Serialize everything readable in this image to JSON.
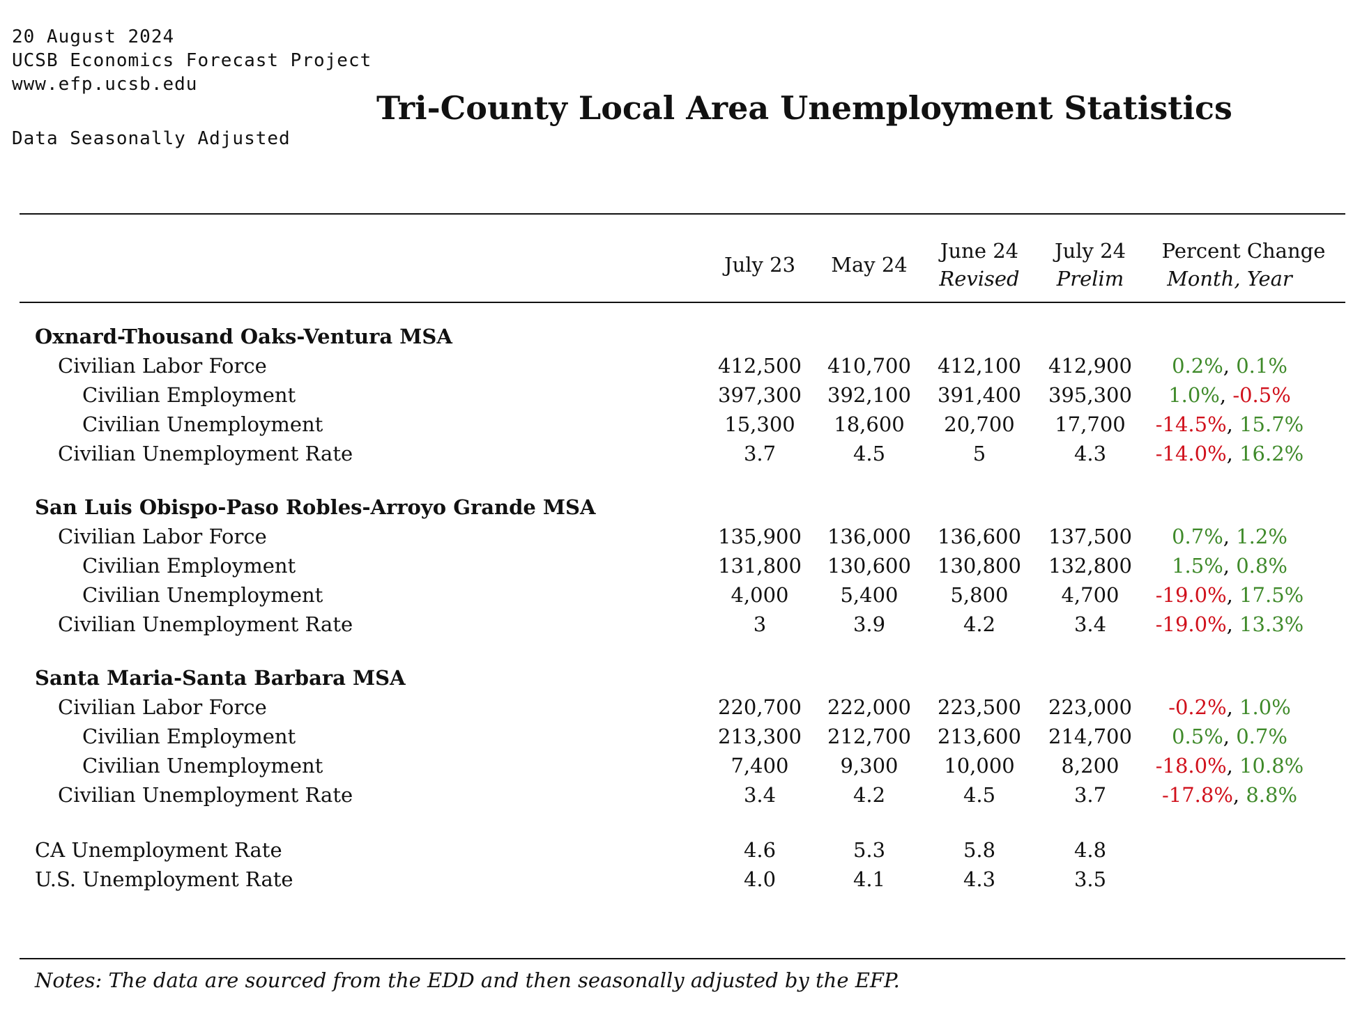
{
  "meta": {
    "date": "20 August 2024",
    "org": "UCSB Economics Forecast Project",
    "url": "www.efp.ucsb.edu",
    "adjustment": "Data Seasonally Adjusted"
  },
  "title": "Tri-County Local Area Unemployment Statistics",
  "columns": [
    {
      "label": "July 23",
      "sub": ""
    },
    {
      "label": "May 24",
      "sub": ""
    },
    {
      "label": "June 24",
      "sub": "Revised"
    },
    {
      "label": "July 24",
      "sub": "Prelim"
    }
  ],
  "pct_header": {
    "label": "Percent Change",
    "sub": "Month, Year"
  },
  "colors": {
    "positive": "#3f8a2a",
    "negative": "#d0101b"
  },
  "sections": [
    {
      "name": "Oxnard-Thousand Oaks-Ventura MSA",
      "rows": [
        {
          "label": "Civilian Labor Force",
          "values": [
            "412,500",
            "410,700",
            "412,100",
            "412,900"
          ],
          "month": "0.2%",
          "year": "0.1%"
        },
        {
          "label": "Civilian Employment",
          "values": [
            "397,300",
            "392,100",
            "391,400",
            "395,300"
          ],
          "month": "1.0%",
          "year": "-0.5%"
        },
        {
          "label": "Civilian Unemployment",
          "values": [
            "15,300",
            "18,600",
            "20,700",
            "17,700"
          ],
          "month": "-14.5%",
          "year": "15.7%"
        },
        {
          "label": "Civilian Unemployment Rate",
          "values": [
            "3.7",
            "4.5",
            "5",
            "4.3"
          ],
          "month": "-14.0%",
          "year": "16.2%"
        }
      ]
    },
    {
      "name": "San Luis Obispo-Paso Robles-Arroyo Grande MSA",
      "rows": [
        {
          "label": "Civilian Labor Force",
          "values": [
            "135,900",
            "136,000",
            "136,600",
            "137,500"
          ],
          "month": "0.7%",
          "year": "1.2%"
        },
        {
          "label": "Civilian Employment",
          "values": [
            "131,800",
            "130,600",
            "130,800",
            "132,800"
          ],
          "month": "1.5%",
          "year": "0.8%"
        },
        {
          "label": "Civilian Unemployment",
          "values": [
            "4,000",
            "5,400",
            "5,800",
            "4,700"
          ],
          "month": "-19.0%",
          "year": "17.5%"
        },
        {
          "label": "Civilian Unemployment Rate",
          "values": [
            "3",
            "3.9",
            "4.2",
            "3.4"
          ],
          "month": "-19.0%",
          "year": "13.3%"
        }
      ]
    },
    {
      "name": "Santa Maria-Santa Barbara MSA",
      "rows": [
        {
          "label": "Civilian Labor Force",
          "values": [
            "220,700",
            "222,000",
            "223,500",
            "223,000"
          ],
          "month": "-0.2%",
          "year": "1.0%"
        },
        {
          "label": "Civilian Employment",
          "values": [
            "213,300",
            "212,700",
            "213,600",
            "214,700"
          ],
          "month": "0.5%",
          "year": "0.7%"
        },
        {
          "label": "Civilian Unemployment",
          "values": [
            "7,400",
            "9,300",
            "10,000",
            "8,200"
          ],
          "month": "-18.0%",
          "year": "10.8%"
        },
        {
          "label": "Civilian Unemployment Rate",
          "values": [
            "3.4",
            "4.2",
            "4.5",
            "3.7"
          ],
          "month": "-17.8%",
          "year": "8.8%"
        }
      ]
    }
  ],
  "extra_rows": [
    {
      "label": "CA Unemployment Rate",
      "values": [
        "4.6",
        "5.3",
        "5.8",
        "4.8"
      ]
    },
    {
      "label": "U.S. Unemployment Rate",
      "values": [
        "4.0",
        "4.1",
        "4.3",
        "3.5"
      ]
    }
  ],
  "notes": "Notes: The data are sourced from the EDD and then seasonally adjusted by the EFP."
}
